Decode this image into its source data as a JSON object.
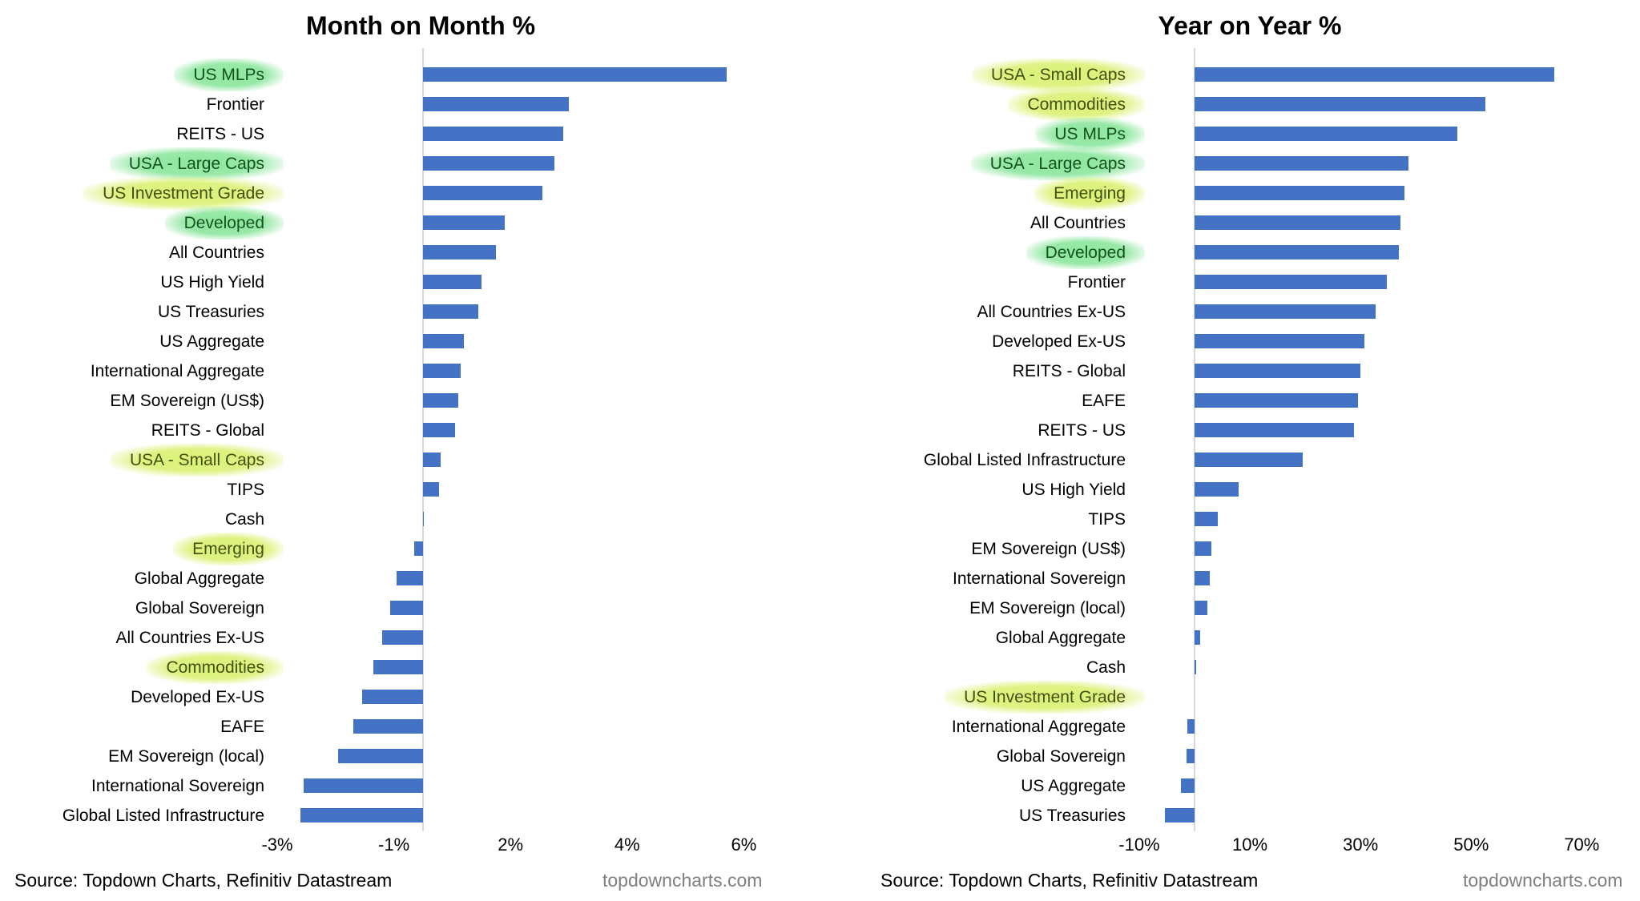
{
  "source_label": "Source: Topdown Charts, Refinitiv Datastream",
  "website_label": "topdowncharts.com",
  "colors": {
    "bar": "#4472C4",
    "axis_line": "#d9d9d9",
    "green_highlight": "#86e598",
    "yellow_highlight": "#d9f06e",
    "green_text": "#14531d",
    "yellow_text": "#44510e",
    "website_gray": "#7f7f7f"
  },
  "chart_data": [
    {
      "type": "bar",
      "orientation": "horizontal",
      "title": "Month on Month %",
      "unit": "%",
      "xlim": [
        -3.6,
        6.6
      ],
      "grid": false,
      "ticks": [
        {
          "label": "-3%",
          "value": -2.5
        },
        {
          "label": "-1%",
          "value": -0.5
        },
        {
          "label": "2%",
          "value": 1.5
        },
        {
          "label": "4%",
          "value": 3.5
        },
        {
          "label": "6%",
          "value": 5.5
        }
      ],
      "categories": [
        "US MLPs",
        "Frontier",
        "REITS - US",
        "USA - Large Caps",
        "US Investment Grade",
        "Developed",
        "All Countries",
        "US High Yield",
        "US Treasuries",
        "US Aggregate",
        "International Aggregate",
        "EM Sovereign (US$)",
        "REITS - Global",
        "USA - Small Caps",
        "TIPS",
        "Cash",
        "Emerging",
        "Global Aggregate",
        "Global Sovereign",
        "All Countries Ex-US",
        "Commodities",
        "Developed Ex-US",
        "EAFE",
        "EM Sovereign (local)",
        "International Sovereign",
        "Global Listed Infrastructure"
      ],
      "values": [
        5.2,
        2.5,
        2.4,
        2.25,
        2.05,
        1.4,
        1.25,
        1.0,
        0.95,
        0.7,
        0.65,
        0.6,
        0.55,
        0.3,
        0.27,
        0.02,
        -0.15,
        -0.45,
        -0.57,
        -0.7,
        -0.85,
        -1.05,
        -1.2,
        -1.45,
        -2.05,
        -2.1
      ],
      "highlights": [
        "green",
        null,
        null,
        "green",
        "yellow",
        "green",
        null,
        null,
        null,
        null,
        null,
        null,
        null,
        "yellow",
        null,
        null,
        "yellow",
        null,
        null,
        null,
        "yellow",
        null,
        null,
        null,
        null,
        null
      ]
    },
    {
      "type": "bar",
      "orientation": "horizontal",
      "title": "Year on Year %",
      "unit": "%",
      "xlim": [
        -12,
        74
      ],
      "grid": false,
      "ticks": [
        {
          "label": "-10%",
          "value": -10
        },
        {
          "label": "10%",
          "value": 10
        },
        {
          "label": "30%",
          "value": 30
        },
        {
          "label": "50%",
          "value": 50
        },
        {
          "label": "70%",
          "value": 70
        }
      ],
      "categories": [
        "USA - Small Caps",
        "Commodities",
        "US MLPs",
        "USA - Large Caps",
        "Emerging",
        "All Countries",
        "Developed",
        "Frontier",
        "All Countries Ex-US",
        "Developed Ex-US",
        "REITS - Global",
        "EAFE",
        "REITS - US",
        "Global Listed Infrastructure",
        "US High Yield",
        "TIPS",
        "EM Sovereign (US$)",
        "International Sovereign",
        "EM Sovereign (local)",
        "Global Aggregate",
        "Cash",
        "US Investment Grade",
        "International Aggregate",
        "Global Sovereign",
        "US Aggregate",
        "US Treasuries"
      ],
      "values": [
        65.0,
        52.5,
        47.5,
        38.6,
        38.0,
        37.2,
        37.0,
        34.7,
        32.8,
        30.7,
        30.0,
        29.5,
        28.8,
        19.5,
        7.9,
        4.2,
        3.1,
        2.8,
        2.3,
        0.95,
        0.3,
        0.0,
        -1.3,
        -1.5,
        -2.5,
        -5.4
      ],
      "highlights": [
        "yellow",
        "yellow",
        "green",
        "green",
        "yellow",
        null,
        "green",
        null,
        null,
        null,
        null,
        null,
        null,
        null,
        null,
        null,
        null,
        null,
        null,
        null,
        null,
        "yellow",
        null,
        null,
        null,
        null
      ]
    }
  ]
}
